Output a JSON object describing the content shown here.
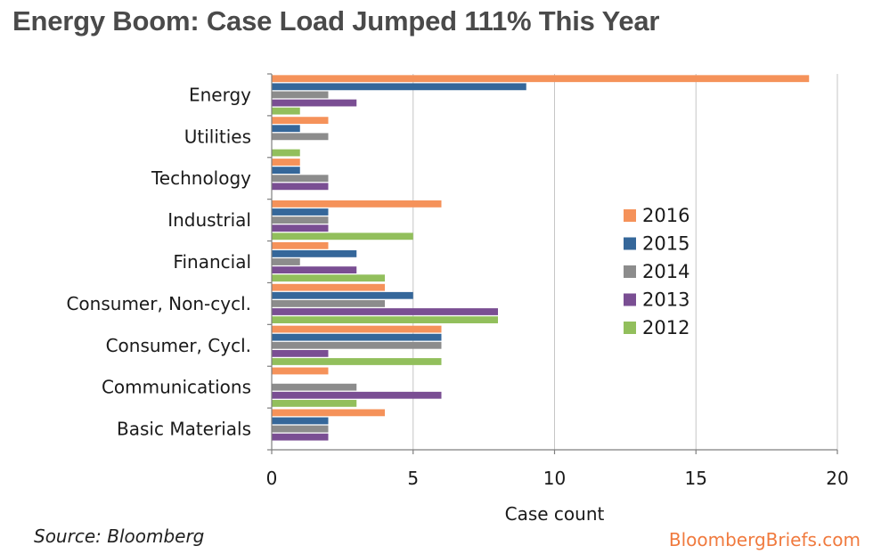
{
  "header": {
    "title": "Energy Boom: Case Load Jumped 111% This Year"
  },
  "footer": {
    "source": "Source: Bloomberg",
    "brand": "BloombergBriefs.com"
  },
  "colors": {
    "2016": "#f5925a",
    "2015": "#35679a",
    "2014": "#8c8c8c",
    "2013": "#7a4e93",
    "2012": "#92bf5c",
    "gridline": "#c6c6c6",
    "axis": "#7f7f7f"
  },
  "chart_data": {
    "type": "bar",
    "orientation": "horizontal",
    "title": "",
    "xlabel": "Case count",
    "ylabel": "",
    "xlim": [
      0,
      20
    ],
    "xticks": [
      0,
      5,
      10,
      15,
      20
    ],
    "grid": "vertical",
    "legend_position": "right",
    "categories": [
      "Energy",
      "Utilities",
      "Technology",
      "Industrial",
      "Financial",
      "Consumer, Non-cycl.",
      "Consumer, Cycl.",
      "Communications",
      "Basic Materials"
    ],
    "series": [
      {
        "name": "2016",
        "values": [
          19,
          2,
          1,
          6,
          2,
          4,
          6,
          2,
          4
        ]
      },
      {
        "name": "2015",
        "values": [
          9,
          1,
          1,
          2,
          3,
          5,
          6,
          0,
          2
        ]
      },
      {
        "name": "2014",
        "values": [
          2,
          2,
          2,
          2,
          1,
          4,
          6,
          3,
          2
        ]
      },
      {
        "name": "2013",
        "values": [
          3,
          0,
          2,
          2,
          3,
          8,
          2,
          6,
          2
        ]
      },
      {
        "name": "2012",
        "values": [
          1,
          1,
          0,
          5,
          4,
          8,
          6,
          3,
          0
        ]
      }
    ]
  }
}
